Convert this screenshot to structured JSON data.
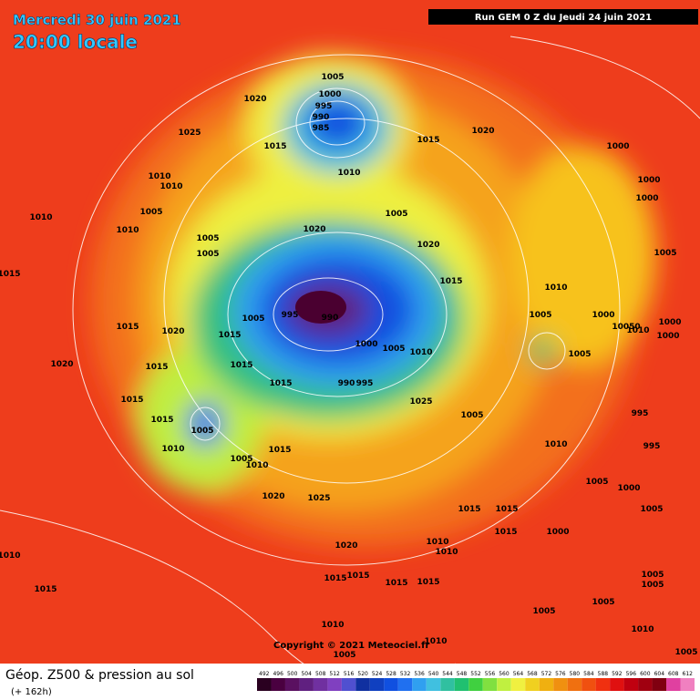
{
  "header": {
    "date": "Mercredi 30 juin 2021",
    "time": "20:00 locale",
    "run": "Run GEM 0 Z du Jeudi 24 juin 2021"
  },
  "copyright": "Copyright © 2021 Meteociel.fr",
  "footer": {
    "title": "Géop. Z500 & pression au sol",
    "lead": "(+ 162h)"
  },
  "legend": {
    "values": [
      492,
      496,
      500,
      504,
      508,
      512,
      516,
      520,
      524,
      528,
      532,
      536,
      540,
      544,
      548,
      552,
      556,
      560,
      564,
      568,
      572,
      576,
      580,
      584,
      588,
      592,
      596,
      600,
      604,
      608,
      612
    ],
    "colors": [
      "#2a0020",
      "#4a0040",
      "#5a1060",
      "#602080",
      "#7030a0",
      "#8040c0",
      "#5050d0",
      "#1030a0",
      "#1040c0",
      "#1050e0",
      "#2070f0",
      "#30a0f0",
      "#40c0e0",
      "#30c0a0",
      "#20c070",
      "#40d040",
      "#80e040",
      "#c0f040",
      "#f0f040",
      "#f0d020",
      "#f0b010",
      "#f09010",
      "#f07010",
      "#f05010",
      "#f03010",
      "#e01010",
      "#c00010",
      "#a00010",
      "#800010",
      "#e040a0",
      "#f080c0"
    ]
  },
  "isobar_labels": [
    "1005",
    "1000",
    "995",
    "990",
    "985",
    "1020",
    "1025",
    "1015",
    "1010",
    "1015",
    "1020",
    "1000",
    "1000",
    "1000",
    "1010",
    "1010",
    "1005",
    "1010",
    "1010",
    "1005",
    "1005",
    "1020",
    "1005",
    "1020",
    "1015",
    "1005",
    "1010",
    "1005",
    "1000",
    "10050",
    "1010",
    "1000",
    "1000",
    "1015",
    "1015",
    "1020",
    "1005",
    "995",
    "990",
    "1015",
    "1000",
    "1005",
    "1010",
    "1005",
    "1020",
    "1015",
    "1015",
    "1015",
    "990",
    "995",
    "1025",
    "1005",
    "1015",
    "1015",
    "1005",
    "1010",
    "1005",
    "1010",
    "1015",
    "1010",
    "995",
    "995",
    "1005",
    "1000",
    "1020",
    "1025",
    "1015",
    "1015",
    "1015",
    "1000",
    "1005",
    "1020",
    "1010",
    "1010",
    "1010",
    "1015",
    "1015",
    "1015",
    "1015",
    "1015",
    "1005",
    "1005",
    "1005",
    "1005",
    "1010",
    "1010",
    "1010",
    "1005",
    "1005"
  ]
}
